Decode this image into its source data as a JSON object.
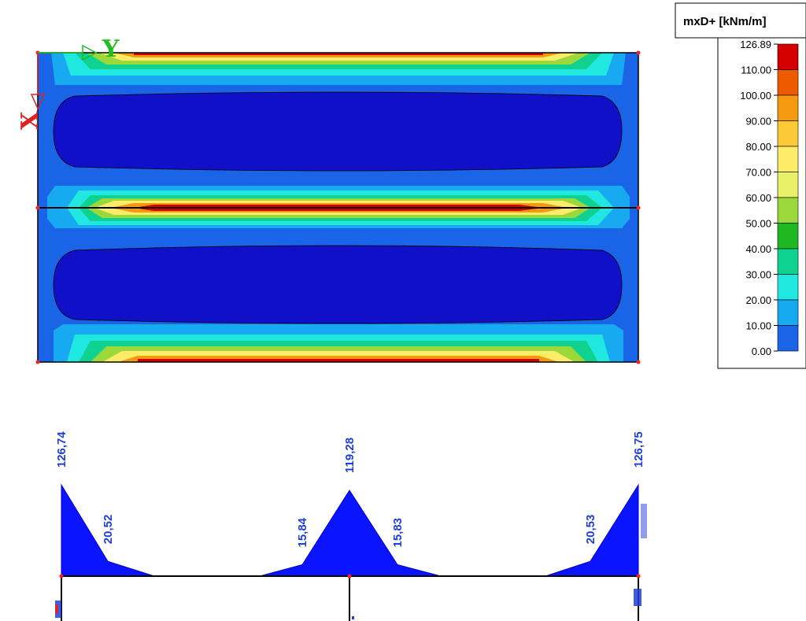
{
  "legend": {
    "title": "mxD+ [kNm/m]",
    "levels": [
      "126.89",
      "110.00",
      "100.00",
      "90.00",
      "80.00",
      "70.00",
      "60.00",
      "50.00",
      "40.00",
      "30.00",
      "20.00",
      "10.00",
      "0.00"
    ],
    "colors": [
      "#d40000",
      "#ee5a00",
      "#f59a10",
      "#fcc938",
      "#fdeb6a",
      "#e8f06a",
      "#9ad83c",
      "#20b820",
      "#10d290",
      "#20e8e0",
      "#18aaf0",
      "#1a64e8",
      "#1010c8"
    ]
  },
  "axes": {
    "x_letter": "Y",
    "y_letter": "X",
    "x_color": "#22bb22",
    "y_color": "#dd2222"
  },
  "chart_data": {
    "type": "area",
    "labels": [
      "126,74",
      "20,52",
      "15,84",
      "119,28",
      "15,83",
      "20,53",
      "126,75"
    ],
    "points": [
      {
        "label": "126,74",
        "value": 126.74
      },
      {
        "label": "20,52",
        "value": 20.52
      },
      {
        "label": "15,84",
        "value": 15.84
      },
      {
        "label": "119,28",
        "value": 119.28
      },
      {
        "label": "15,83",
        "value": 15.83
      },
      {
        "label": "20,53",
        "value": 20.53
      },
      {
        "label": "126,75",
        "value": 126.75
      }
    ],
    "fill_color": "#0a14ff"
  }
}
